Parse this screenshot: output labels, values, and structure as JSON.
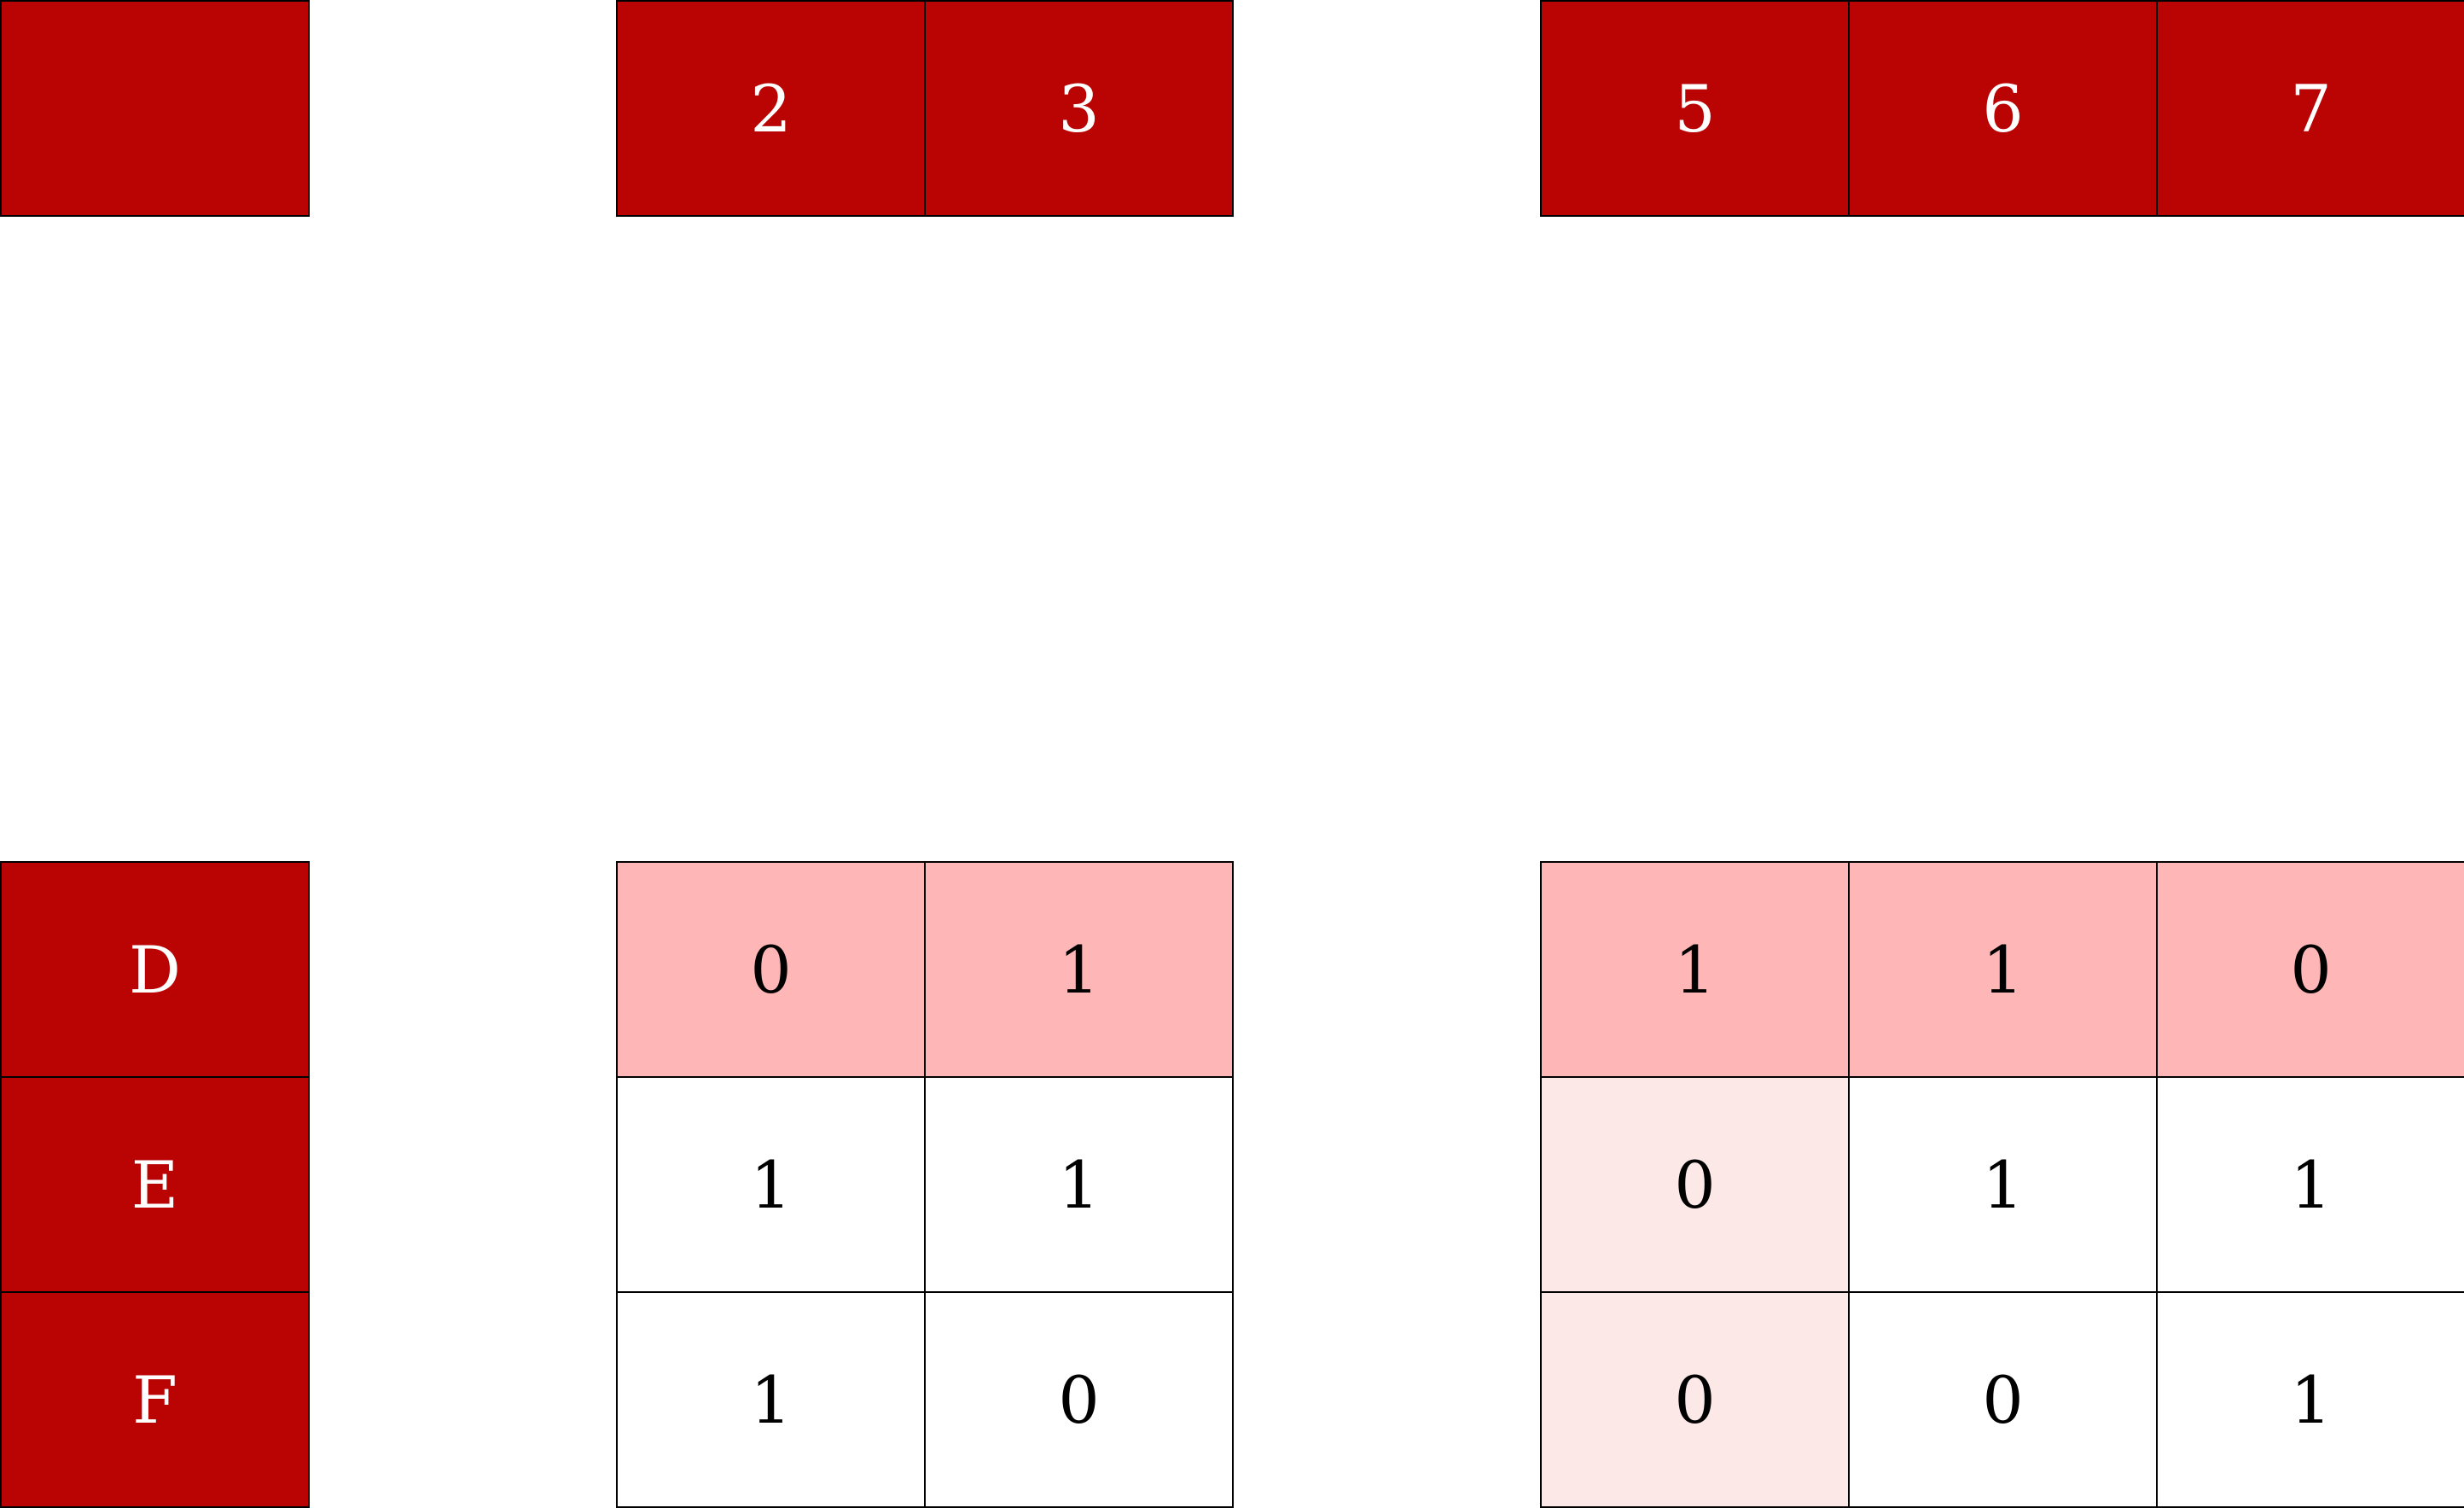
{
  "colors": {
    "header": "#BA0303",
    "highlight": "#FFB6B6",
    "soft_highlight": "#FDE8E8",
    "plain": "#FFFFFF"
  },
  "top": [
    {
      "cells": [
        ""
      ]
    },
    {
      "cells": [
        "2",
        "3"
      ]
    },
    {
      "cells": [
        "5",
        "6",
        "7"
      ]
    }
  ],
  "bottom": [
    {
      "kind": "header",
      "rows": [
        [
          "D"
        ],
        [
          "E"
        ],
        [
          "F"
        ]
      ]
    },
    {
      "kind": "values",
      "rows": [
        [
          "0",
          "1"
        ],
        [
          "1",
          "1"
        ],
        [
          "1",
          "0"
        ]
      ],
      "shade": [
        [
          "highlight",
          "highlight"
        ],
        [
          "plain",
          "plain"
        ],
        [
          "plain",
          "plain"
        ]
      ]
    },
    {
      "kind": "values",
      "rows": [
        [
          "1",
          "1",
          "0"
        ],
        [
          "0",
          "1",
          "1"
        ],
        [
          "0",
          "0",
          "1"
        ]
      ],
      "shade": [
        [
          "highlight",
          "highlight",
          "highlight"
        ],
        [
          "soft_highlight",
          "plain",
          "plain"
        ],
        [
          "soft_highlight",
          "plain",
          "plain"
        ]
      ]
    }
  ]
}
